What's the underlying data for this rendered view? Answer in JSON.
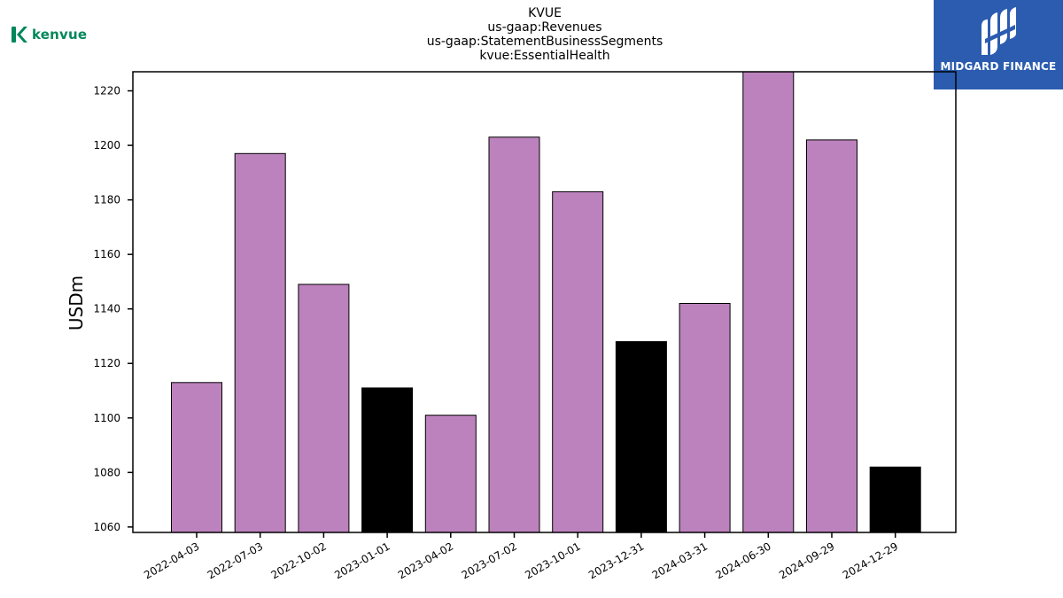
{
  "chart_data": {
    "type": "bar",
    "title_lines": [
      "KVUE",
      "us-gaap:Revenues",
      "us-gaap:StatementBusinessSegments",
      "kvue:EssentialHealth"
    ],
    "xlabel": "",
    "ylabel": "USDm",
    "categories": [
      "2022-04-03",
      "2022-07-03",
      "2022-10-02",
      "2023-01-01",
      "2023-04-02",
      "2023-07-02",
      "2023-10-01",
      "2023-12-31",
      "2024-03-31",
      "2024-06-30",
      "2024-09-29",
      "2024-12-29"
    ],
    "values": [
      1113,
      1197,
      1149,
      1111,
      1101,
      1203,
      1183,
      1128,
      1142,
      1227,
      1202,
      1082
    ],
    "bar_colors": [
      "#bc82bd",
      "#bc82bd",
      "#bc82bd",
      "#000000",
      "#bc82bd",
      "#bc82bd",
      "#bc82bd",
      "#000000",
      "#bc82bd",
      "#bc82bd",
      "#bc82bd",
      "#000000"
    ],
    "ylim": [
      1058,
      1227
    ],
    "yticks": [
      1060,
      1080,
      1100,
      1120,
      1140,
      1160,
      1180,
      1200,
      1220
    ],
    "grid": false,
    "legend": "none"
  },
  "logos": {
    "left": {
      "text": "kenvue",
      "color": "#00875a",
      "icon": "kenvue-k-icon"
    },
    "right": {
      "text": "MIDGARD FINANCE",
      "background": "#2b5cb0",
      "icon": "midgard-mark-icon"
    }
  }
}
